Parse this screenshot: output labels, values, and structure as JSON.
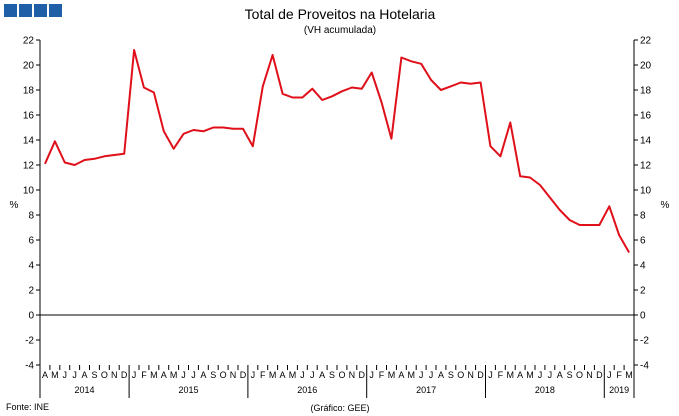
{
  "chart_data": {
    "type": "line",
    "title": "Total de Proveitos na Hotelaria",
    "subtitle": "(VH acumulada)",
    "ylabel_left": "%",
    "ylabel_right": "%",
    "ylim": [
      -4,
      22
    ],
    "yticks": [
      -4,
      -2,
      0,
      2,
      4,
      6,
      8,
      10,
      12,
      14,
      16,
      18,
      20,
      22
    ],
    "grid": false,
    "source": "Fonte: INE",
    "credit": "(Gráfico: GEE)",
    "line_color": "#e0101a",
    "brand_colors": [
      "#1f5fa8",
      "#1f5fa8",
      "#1f5fa8",
      "#1f5fa8"
    ],
    "x": [
      "A",
      "M",
      "J",
      "J",
      "A",
      "S",
      "O",
      "N",
      "D",
      "J",
      "F",
      "M",
      "A",
      "M",
      "J",
      "J",
      "A",
      "S",
      "O",
      "N",
      "D",
      "J",
      "F",
      "M",
      "A",
      "M",
      "J",
      "J",
      "A",
      "S",
      "O",
      "N",
      "D",
      "J",
      "F",
      "M",
      "A",
      "M",
      "J",
      "J",
      "A",
      "S",
      "O",
      "N",
      "D",
      "J",
      "F",
      "M",
      "A",
      "M",
      "J",
      "J",
      "A",
      "S",
      "O",
      "N",
      "D",
      "J",
      "F",
      "M"
    ],
    "years": [
      {
        "label": "2014",
        "start": 0,
        "count": 9
      },
      {
        "label": "2015",
        "start": 9,
        "count": 12
      },
      {
        "label": "2016",
        "start": 21,
        "count": 12
      },
      {
        "label": "2017",
        "start": 33,
        "count": 12
      },
      {
        "label": "2018",
        "start": 45,
        "count": 12
      },
      {
        "label": "2019",
        "start": 57,
        "count": 3
      }
    ],
    "series": [
      {
        "values": [
          12.1,
          13.9,
          12.2,
          12.0,
          12.4,
          12.5,
          12.7,
          12.8,
          12.9,
          21.2,
          18.2,
          17.8,
          14.7,
          13.3,
          14.5,
          14.8,
          14.7,
          15.0,
          15.0,
          14.9,
          14.9,
          13.5,
          18.3,
          20.8,
          17.7,
          17.4,
          17.4,
          18.1,
          17.2,
          17.5,
          17.9,
          18.2,
          18.1,
          19.4,
          17.0,
          14.1,
          20.6,
          20.3,
          20.1,
          18.8,
          18.0,
          18.3,
          18.6,
          18.5,
          18.6,
          13.5,
          12.7,
          15.4,
          11.1,
          11.0,
          10.4,
          9.4,
          8.4,
          7.6,
          7.2,
          7.2,
          7.2,
          8.7,
          6.4,
          5.0
        ]
      }
    ]
  }
}
